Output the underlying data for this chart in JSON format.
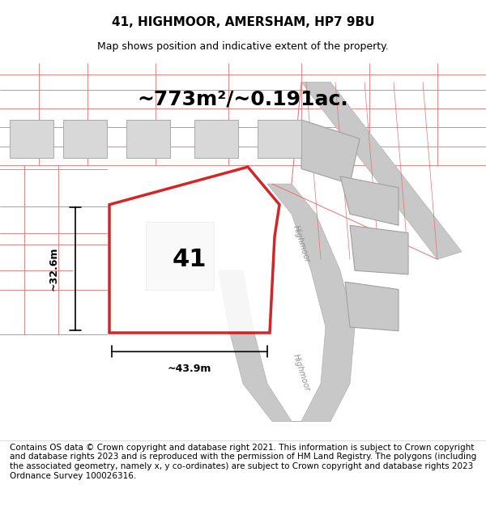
{
  "title": "41, HIGHMOOR, AMERSHAM, HP7 9BU",
  "subtitle": "Map shows position and indicative extent of the property.",
  "area_text": "~773m²/~0.191ac.",
  "width_label": "~43.9m",
  "height_label": "~32.6m",
  "number_label": "41",
  "footer_text": "Contains OS data © Crown copyright and database right 2021. This information is subject to Crown copyright and database rights 2023 and is reproduced with the permission of HM Land Registry. The polygons (including the associated geometry, namely x, y co-ordinates) are subject to Crown copyright and database rights 2023 Ordnance Survey 100026316.",
  "bg_color": "#ffffff",
  "map_bg": "#ffffff",
  "plot_outline_color": "#cc0000",
  "plot_fill_color": "#ffffff",
  "dim_line_color": "#000000",
  "building_fill": "#d0d0d0",
  "building_outline": "#808080",
  "road_fill": "#c8c8c8",
  "parcel_line_color": "#e87070",
  "road_label_color": "#808080",
  "title_fontsize": 11,
  "subtitle_fontsize": 9,
  "area_fontsize": 18,
  "label_fontsize": 22,
  "dim_label_fontsize": 10,
  "footer_fontsize": 7.5
}
